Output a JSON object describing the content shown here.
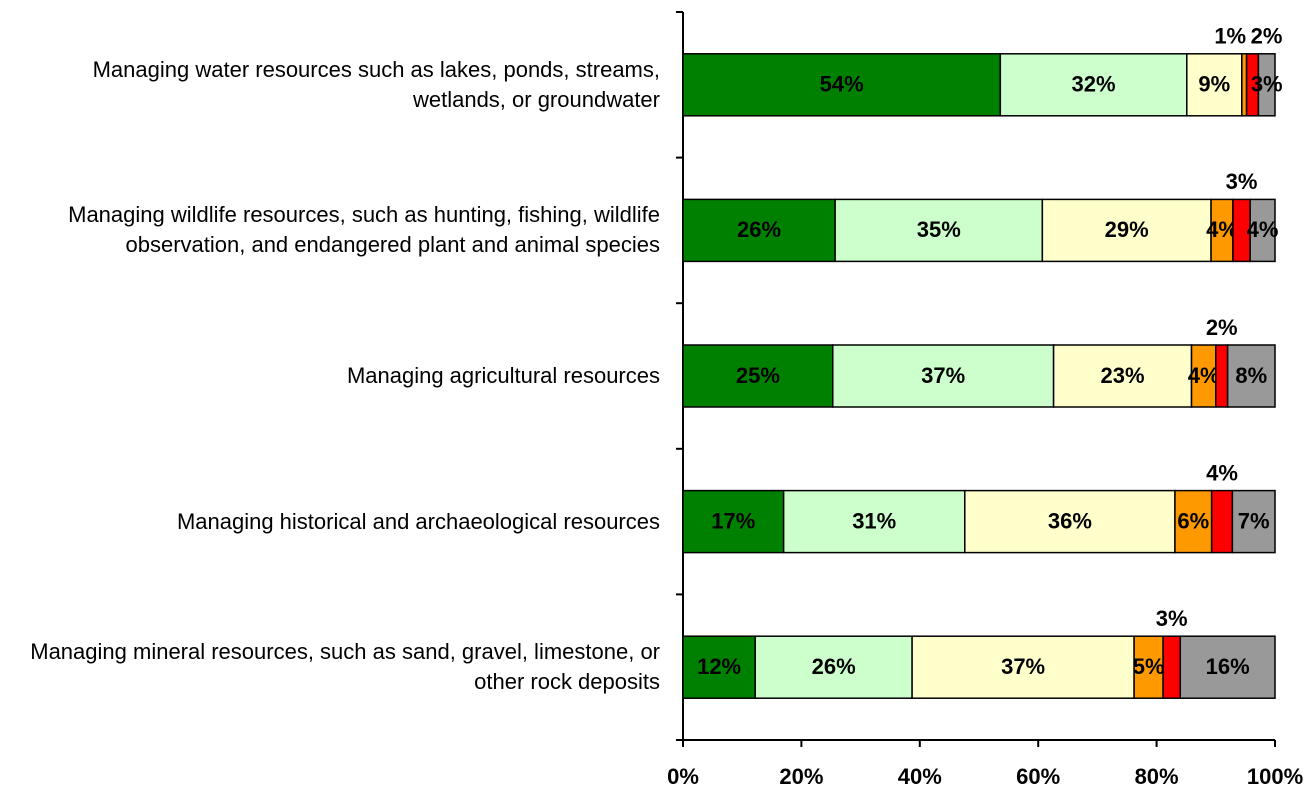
{
  "chart_data": {
    "type": "stacked_bar_horizontal",
    "categories": [
      "Managing water resources such as lakes, ponds, streams, wetlands, or groundwater",
      "Managing wildlife resources, such as hunting, fishing, wildlife observation, and endangered plant and animal species",
      "Managing agricultural resources",
      "Managing historical and archaeological resources",
      "Managing mineral resources, such as sand, gravel, limestone, or other rock deposits"
    ],
    "series": [
      {
        "color": "#008000",
        "values": [
          53.6,
          25.7,
          25.3,
          17.0,
          12.2
        ],
        "value_labels": [
          "54%",
          "26%",
          "25%",
          "17%",
          "12%"
        ]
      },
      {
        "color": "#ccffcc",
        "values": [
          31.5,
          35.0,
          37.3,
          30.6,
          26.5
        ],
        "value_labels": [
          "32%",
          "35%",
          "37%",
          "31%",
          "26%"
        ]
      },
      {
        "color": "#ffffcc",
        "values": [
          9.3,
          28.5,
          23.3,
          35.5,
          37.5
        ],
        "value_labels": [
          "9%",
          "29%",
          "23%",
          "36%",
          "37%"
        ]
      },
      {
        "color": "#ff9900",
        "values": [
          0.8,
          3.7,
          4.1,
          6.2,
          4.9
        ],
        "value_labels": [
          "1%",
          "4%",
          "4%",
          "6%",
          "5%"
        ]
      },
      {
        "color": "#ff0000",
        "values": [
          2.0,
          2.9,
          2.0,
          3.5,
          2.9
        ],
        "value_labels": [
          "2%",
          "3%",
          "2%",
          "4%",
          "3%"
        ]
      },
      {
        "color": "#999999",
        "values": [
          2.8,
          4.2,
          8.0,
          7.2,
          16.0
        ],
        "value_labels": [
          "3%",
          "4%",
          "8%",
          "7%",
          "16%"
        ]
      }
    ],
    "xlim": [
      0,
      100
    ],
    "xticks": [
      {
        "value": 0,
        "label": "0%"
      },
      {
        "value": 20,
        "label": "20%"
      },
      {
        "value": 40,
        "label": "40%"
      },
      {
        "value": 60,
        "label": "60%"
      },
      {
        "value": 80,
        "label": "80%"
      },
      {
        "value": 100,
        "label": "100%"
      }
    ]
  }
}
